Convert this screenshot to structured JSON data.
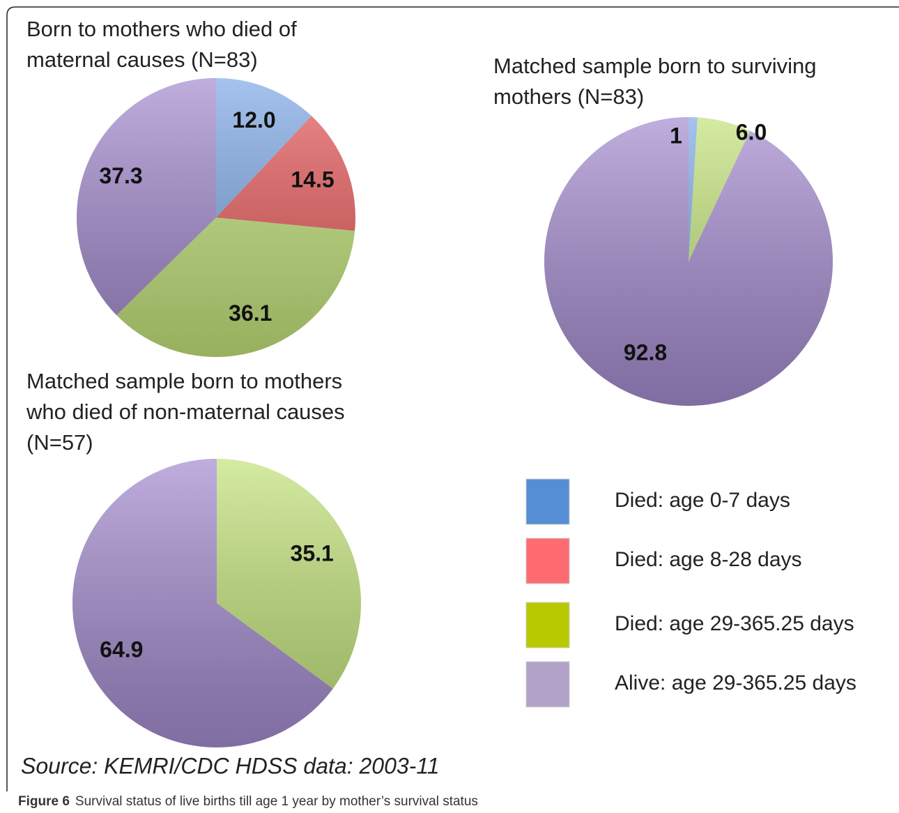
{
  "chart_data": [
    {
      "type": "pie",
      "title": [
        "Born to mothers who died of",
        "maternal causes (N=83)"
      ],
      "values": [
        12.0,
        14.5,
        36.1,
        37.3
      ],
      "value_labels": [
        "12.0",
        "14.5",
        "36.1",
        "37.3"
      ],
      "colors": [
        "#7fa9e6",
        "#e85c5c",
        "#c2e27a",
        "#a48ccf"
      ]
    },
    {
      "type": "pie",
      "title": [
        "Matched sample born to surviving",
        "mothers (N=83)"
      ],
      "values": [
        1,
        6.0,
        92.8
      ],
      "value_labels": [
        "1",
        "6.0",
        "92.8"
      ],
      "colors": [
        "#7fa9e6",
        "#c2e27a",
        "#a48ccf"
      ]
    },
    {
      "type": "pie",
      "title": [
        "Matched sample born to mothers",
        "who died of non-maternal causes",
        "(N=57)"
      ],
      "values": [
        35.1,
        64.9
      ],
      "value_labels": [
        "35.1",
        "64.9"
      ],
      "colors": [
        "#c2e27a",
        "#a48ccf"
      ]
    }
  ],
  "legend": {
    "labels": [
      "Died: age 0-7 days",
      "Died: age 8-28 days",
      "Died: age 29-365.25 days",
      "Alive: age 29-365.25 days"
    ],
    "colors": [
      "#558ed5",
      "#fe6b70",
      "#b9c900",
      "#b3a2c7"
    ]
  },
  "source": "Source: KEMRI/CDC HDSS data: 2003-11",
  "caption": {
    "label": "Figure 6",
    "text": "Survival status of live births till age 1 year by mother’s survival status"
  }
}
